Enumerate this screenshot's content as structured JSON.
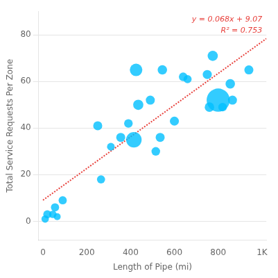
{
  "chart_data": {
    "type": "bubble",
    "xlabel": "Length of Pipe (mi)",
    "ylabel": "Total Service Requests Per Zone",
    "x": [
      10,
      20,
      45,
      55,
      65,
      90,
      250,
      265,
      310,
      355,
      390,
      415,
      425,
      435,
      490,
      515,
      535,
      545,
      600,
      640,
      660,
      750,
      760,
      775,
      800,
      820,
      855,
      865,
      940
    ],
    "values": [
      1,
      3,
      3,
      6,
      2,
      9,
      41,
      18,
      32,
      36,
      42,
      35,
      65,
      50,
      52,
      30,
      36,
      65,
      43,
      62,
      61,
      63,
      49,
      71,
      52,
      49,
      59,
      52,
      65
    ],
    "sizes": [
      15,
      18,
      15,
      18,
      13,
      18,
      22,
      18,
      16,
      22,
      20,
      65,
      42,
      28,
      22,
      20,
      22,
      24,
      22,
      20,
      18,
      22,
      24,
      28,
      145,
      20,
      24,
      22,
      22
    ],
    "color": "#00BFFF",
    "trend_line": {
      "type": "line",
      "x": [
        0,
        1020
      ],
      "values": [
        9.07,
        78.43
      ],
      "color": "#E8413C",
      "line_style": "dotted"
    },
    "annotations": [
      "y = 0.068x + 9.07",
      "R² = 0.753"
    ],
    "xlim": [
      -20,
      1020
    ],
    "ylim": [
      -8,
      90
    ],
    "xticks": [
      0,
      200,
      400,
      600,
      800,
      {
        "value": 1000,
        "label": "1K"
      }
    ],
    "yticks": [
      0,
      20,
      40,
      60,
      80
    ],
    "grid": "y"
  }
}
